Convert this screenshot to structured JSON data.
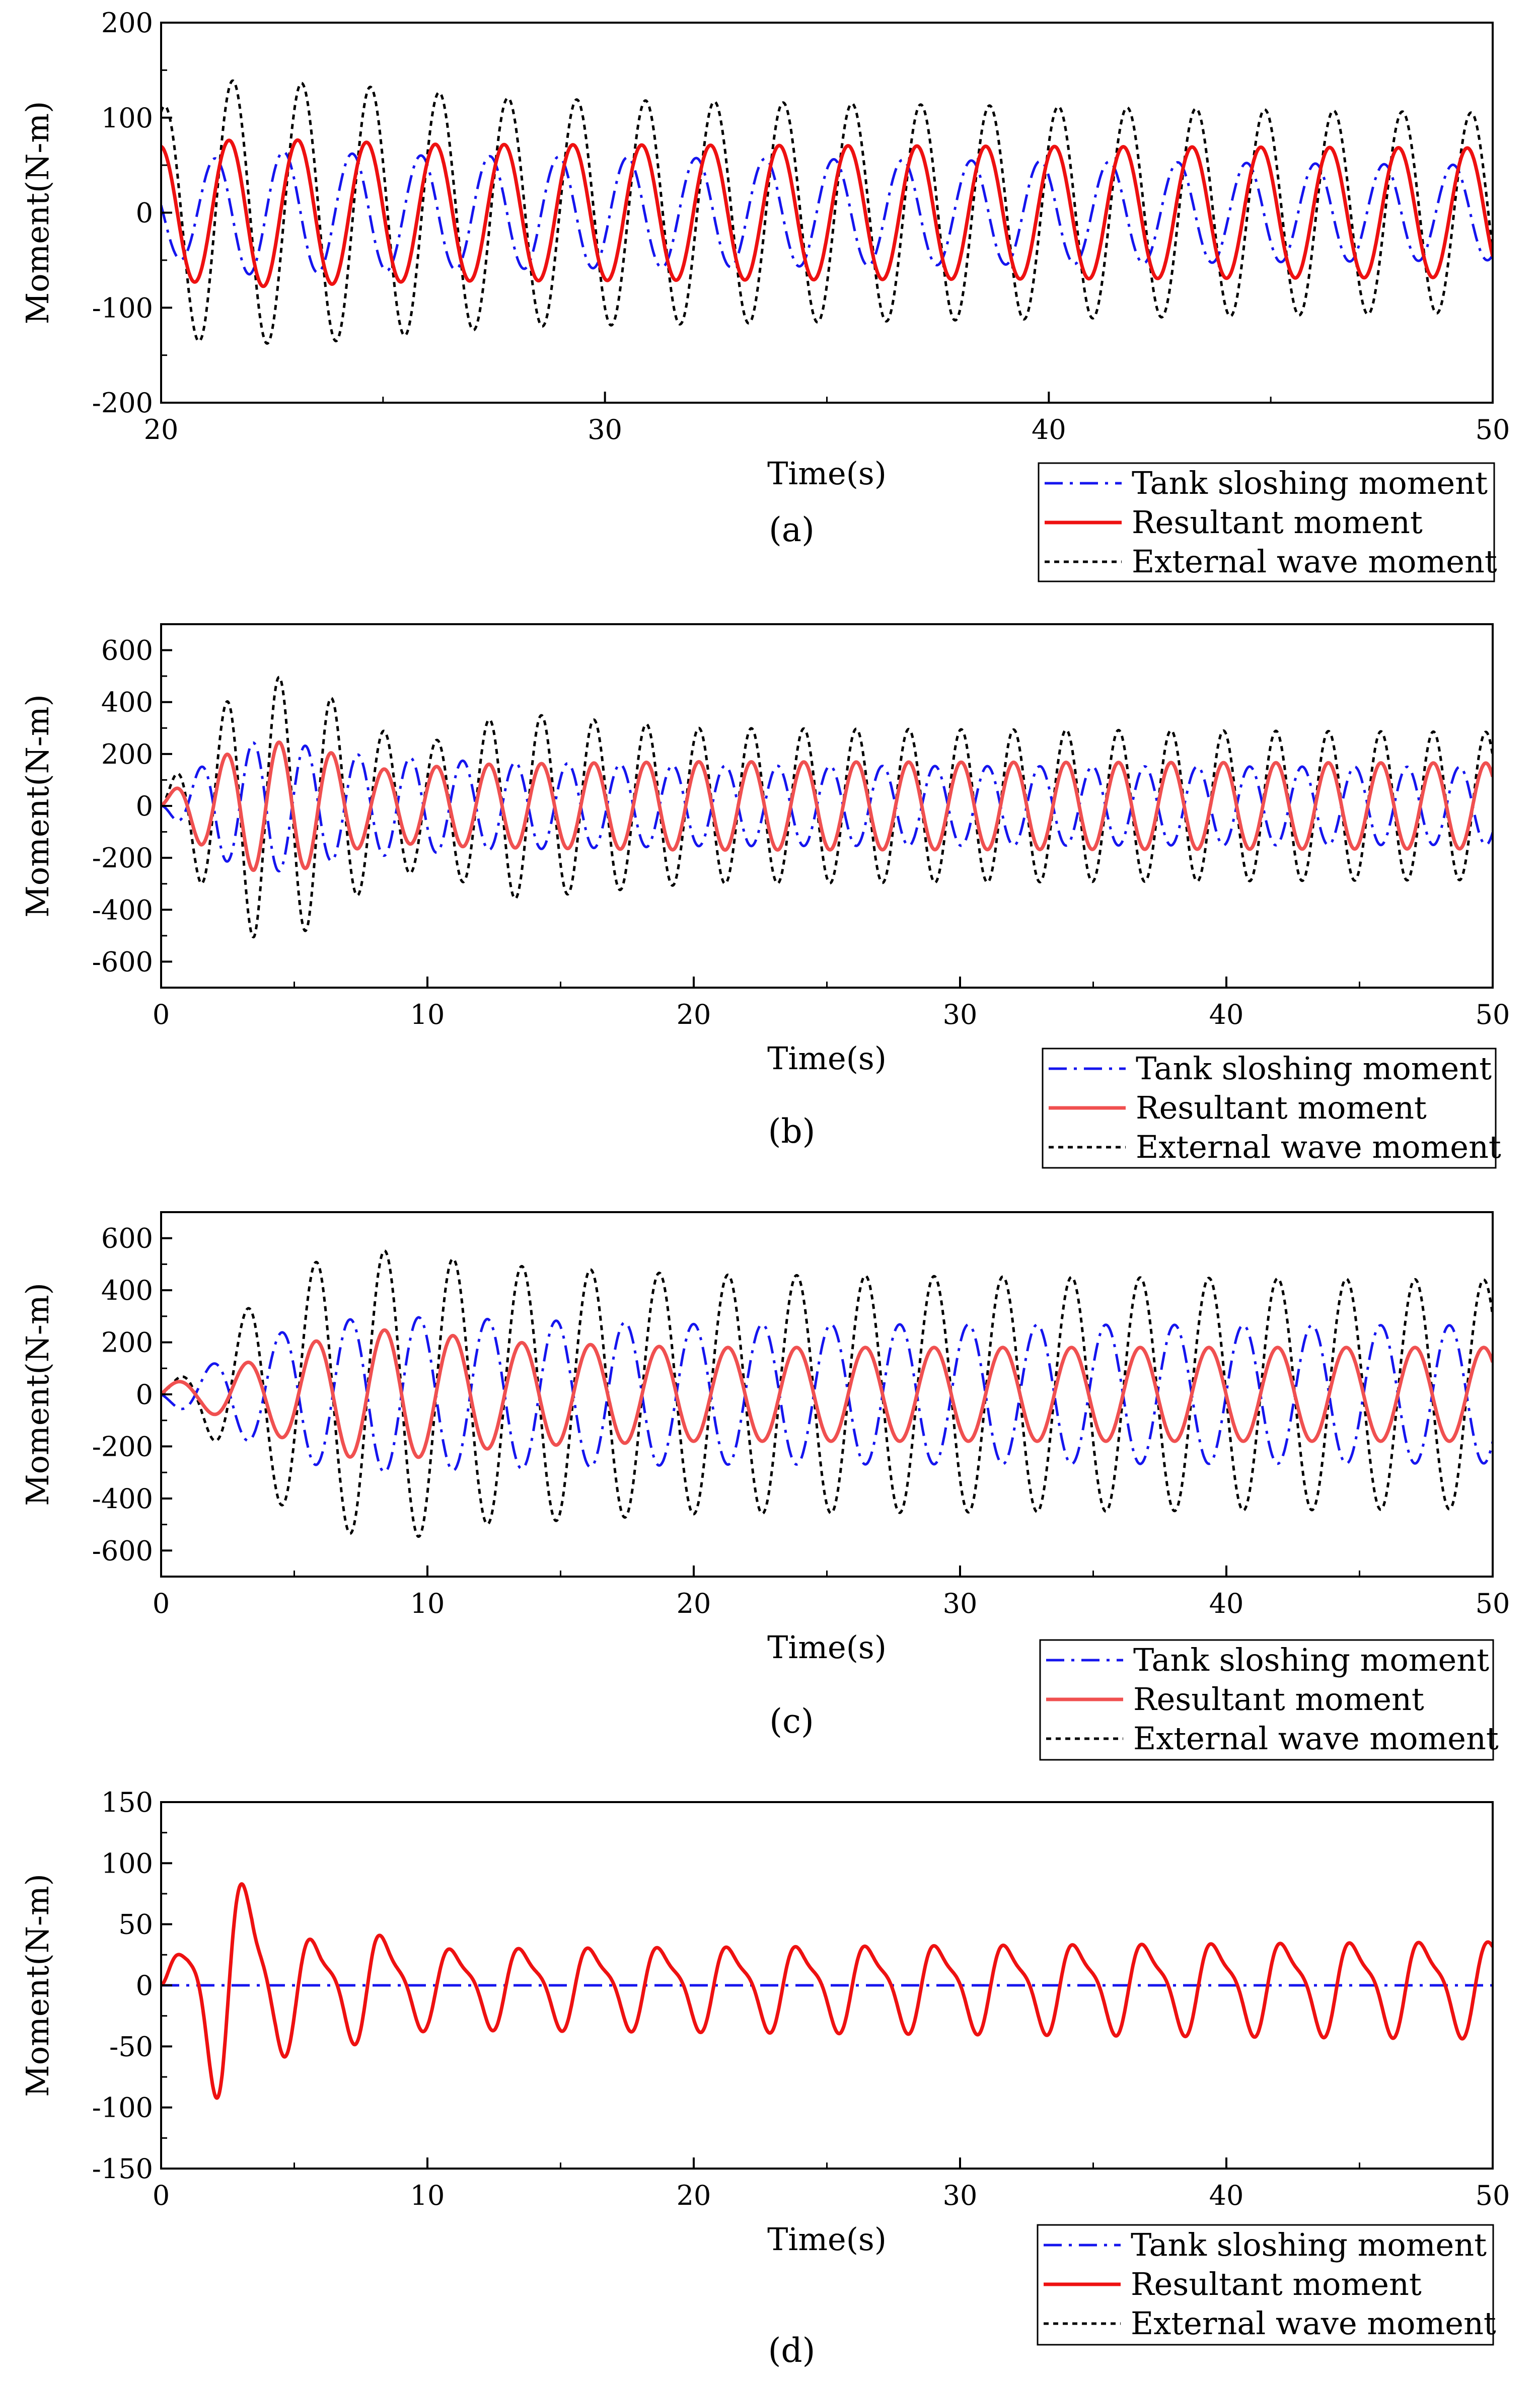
{
  "figure": {
    "colors": {
      "tank": "#1515ee",
      "resultant": "#ee1111",
      "resultant_light": "#f05050",
      "external": "#000000"
    },
    "legend_labels": [
      "Tank sloshing moment",
      "Resultant moment",
      "External wave moment"
    ]
  },
  "chart_data": [
    {
      "type": "line",
      "caption": "(a)",
      "xlabel": "Time(s)",
      "ylabel": "Moment(N-m)",
      "xlim": [
        20,
        50
      ],
      "ylim": [
        -200,
        200
      ],
      "xticks": [
        20,
        30,
        40,
        50
      ],
      "yticks": [
        -200,
        -100,
        0,
        100,
        200
      ],
      "legend": [
        "Tank sloshing moment",
        "Resultant moment",
        "External wave moment"
      ],
      "series": [
        {
          "name": "Tank sloshing moment",
          "style": "dashdot",
          "color": "#1515ee",
          "x_start": 20,
          "period": 1.55,
          "envelope_t": [
            20,
            22,
            26,
            50
          ],
          "envelope_a": [
            45,
            65,
            60,
            50
          ],
          "phase_deg": 170
        },
        {
          "name": "Resultant moment",
          "style": "solid",
          "color": "#ee1111",
          "x_start": 20,
          "period": 1.55,
          "envelope_t": [
            20,
            22,
            26,
            50
          ],
          "envelope_a": [
            70,
            78,
            72,
            68
          ],
          "phase_deg": 95
        },
        {
          "name": "External wave moment",
          "style": "dotted",
          "color": "#000000",
          "x_start": 20,
          "period": 1.55,
          "envelope_t": [
            20,
            21,
            24,
            28,
            50
          ],
          "envelope_a": [
            110,
            140,
            135,
            120,
            105
          ],
          "phase_deg": 75
        }
      ]
    },
    {
      "type": "line",
      "caption": "(b)",
      "xlabel": "Time(s)",
      "ylabel": "Moment(N-m)",
      "xlim": [
        0,
        50
      ],
      "ylim": [
        -700,
        700
      ],
      "xticks": [
        0,
        10,
        20,
        30,
        40,
        50
      ],
      "yticks": [
        -600,
        -400,
        -200,
        0,
        200,
        400,
        600
      ],
      "legend": [
        "Tank sloshing moment",
        "Resultant moment",
        "External wave moment"
      ],
      "series": [
        {
          "name": "Tank sloshing moment",
          "style": "dashdot",
          "color": "#1515ee",
          "x_start": 0,
          "period": 1.97,
          "envelope_t": [
            0,
            2,
            4,
            7,
            12,
            20,
            50
          ],
          "envelope_a": [
            0,
            200,
            260,
            200,
            170,
            155,
            150
          ],
          "phase_deg": 180
        },
        {
          "name": "Resultant moment",
          "style": "solid",
          "color": "#f05050",
          "x_start": 0,
          "period": 1.97,
          "envelope_t": [
            0,
            1.5,
            3.5,
            5.5,
            8,
            12,
            20,
            50
          ],
          "envelope_a": [
            20,
            150,
            250,
            240,
            140,
            160,
            170,
            165
          ],
          "phase_deg": 0
        },
        {
          "name": "External wave moment",
          "style": "dotted",
          "color": "#000000",
          "x_start": 0,
          "period": 1.97,
          "envelope_t": [
            0,
            1.5,
            3.5,
            5.5,
            8,
            10,
            13,
            20,
            50
          ],
          "envelope_a": [
            20,
            300,
            510,
            480,
            300,
            240,
            360,
            300,
            285
          ],
          "phase_deg": 0
        }
      ]
    },
    {
      "type": "line",
      "caption": "(c)",
      "xlabel": "Time(s)",
      "ylabel": "Moment(N-m)",
      "xlim": [
        0,
        50
      ],
      "ylim": [
        -700,
        700
      ],
      "xticks": [
        0,
        10,
        20,
        30,
        40,
        50
      ],
      "yticks": [
        -600,
        -400,
        -200,
        0,
        200,
        400,
        600
      ],
      "legend": [
        "Tank sloshing moment",
        "Resultant moment",
        "External wave moment"
      ],
      "series": [
        {
          "name": "Tank sloshing moment",
          "style": "dashdot",
          "color": "#1515ee",
          "x_start": 0,
          "period": 2.58,
          "envelope_t": [
            0,
            2,
            5,
            8,
            12,
            20,
            50
          ],
          "envelope_a": [
            20,
            120,
            260,
            300,
            290,
            270,
            265
          ],
          "phase_deg": 180
        },
        {
          "name": "Resultant moment",
          "style": "solid",
          "color": "#f05050",
          "x_start": 0,
          "period": 2.58,
          "envelope_t": [
            0,
            1.5,
            4,
            7,
            9,
            13,
            20,
            50
          ],
          "envelope_a": [
            40,
            60,
            150,
            240,
            250,
            200,
            180,
            180
          ],
          "phase_deg": 0
        },
        {
          "name": "External wave moment",
          "style": "dotted",
          "color": "#000000",
          "x_start": 0,
          "period": 2.58,
          "envelope_t": [
            0,
            1.5,
            3.5,
            6,
            9,
            12,
            20,
            50
          ],
          "envelope_a": [
            20,
            120,
            360,
            520,
            560,
            500,
            460,
            440
          ],
          "phase_deg": 0
        }
      ]
    },
    {
      "type": "line",
      "caption": "(d)",
      "xlabel": "Time(s)",
      "ylabel": "Moment(N-m)",
      "xlim": [
        0,
        50
      ],
      "ylim": [
        -150,
        150
      ],
      "xticks": [
        0,
        10,
        20,
        30,
        40,
        50
      ],
      "yticks": [
        -150,
        -100,
        -50,
        0,
        50,
        100,
        150
      ],
      "legend": [
        "Tank sloshing moment",
        "Resultant moment",
        "External wave moment"
      ],
      "series": [
        {
          "name": "Tank sloshing moment",
          "style": "dashdot",
          "color": "#1515ee",
          "x_start": 0,
          "period": 2.6,
          "envelope_t": [
            0,
            50
          ],
          "envelope_a": [
            0,
            0
          ],
          "phase_deg": 0
        },
        {
          "name": "Resultant moment",
          "style": "solid",
          "color": "#ee1111",
          "x_start": 0,
          "period": 2.6,
          "envelope_t": [
            0,
            1,
            2.3,
            3.4,
            4.3,
            6,
            8,
            10,
            50
          ],
          "envelope_a": [
            0,
            55,
            95,
            100,
            60,
            40,
            50,
            35,
            42
          ],
          "phase_deg": 0,
          "harmonic_ratio": 0.3
        },
        {
          "name": "External wave moment",
          "style": "dotted",
          "color": "#000000",
          "x_start": 0,
          "period": 2.6,
          "envelope_t": [
            0,
            1,
            2.3,
            3.4,
            4.3,
            6,
            8,
            10,
            50
          ],
          "envelope_a": [
            0,
            55,
            95,
            100,
            60,
            40,
            50,
            35,
            42
          ],
          "phase_deg": 0,
          "harmonic_ratio": 0.3
        }
      ]
    }
  ]
}
